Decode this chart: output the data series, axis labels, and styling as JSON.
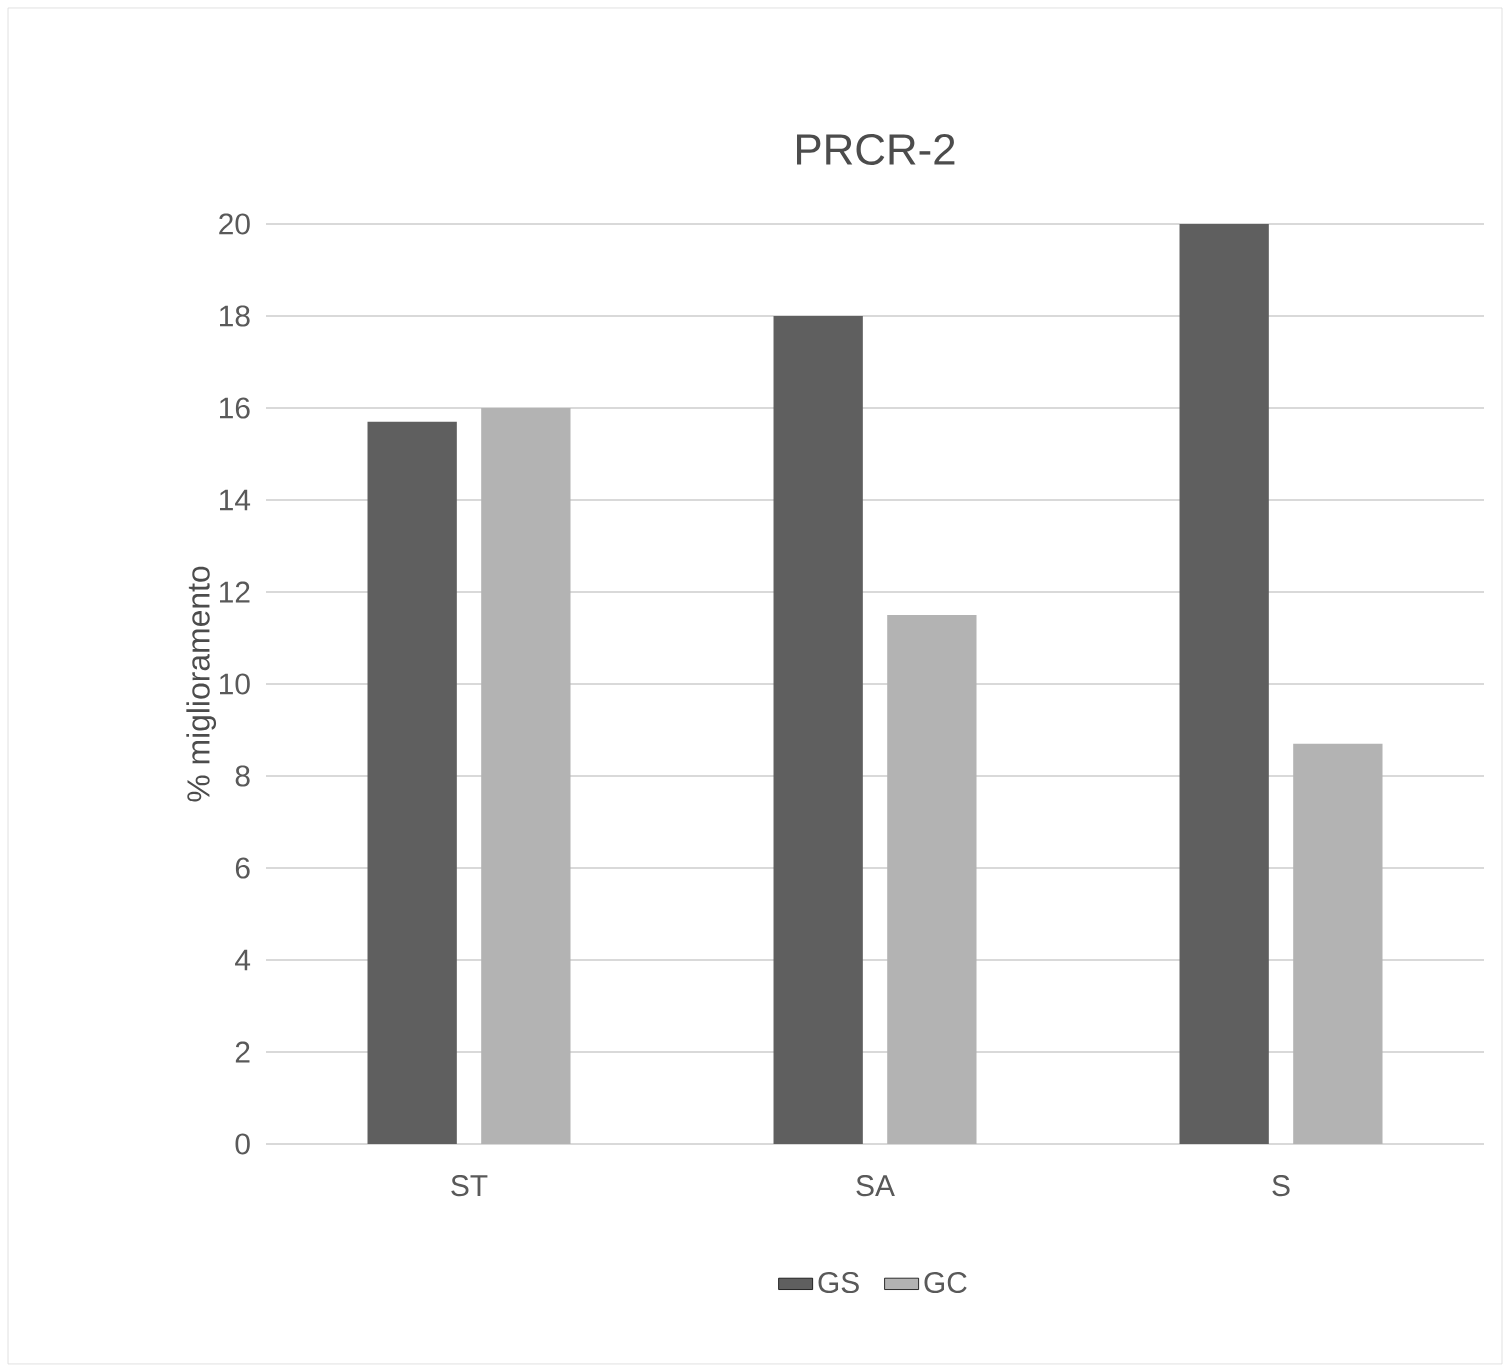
{
  "chart_data": {
    "type": "bar",
    "title": "PRCR-2",
    "ylabel": "% miglioramento",
    "categories": [
      "ST",
      "SA",
      "S"
    ],
    "series": [
      {
        "name": "GS",
        "color": "#5f5f5f",
        "values": [
          15.7,
          18,
          20
        ]
      },
      {
        "name": "GC",
        "color": "#b3b3b3",
        "values": [
          16,
          11.5,
          8.7
        ]
      }
    ],
    "ylim": [
      0,
      20
    ],
    "yticks": [
      0,
      2,
      4,
      6,
      8,
      10,
      12,
      14,
      16,
      18,
      20
    ],
    "grid": "y",
    "legend": "bottom"
  }
}
